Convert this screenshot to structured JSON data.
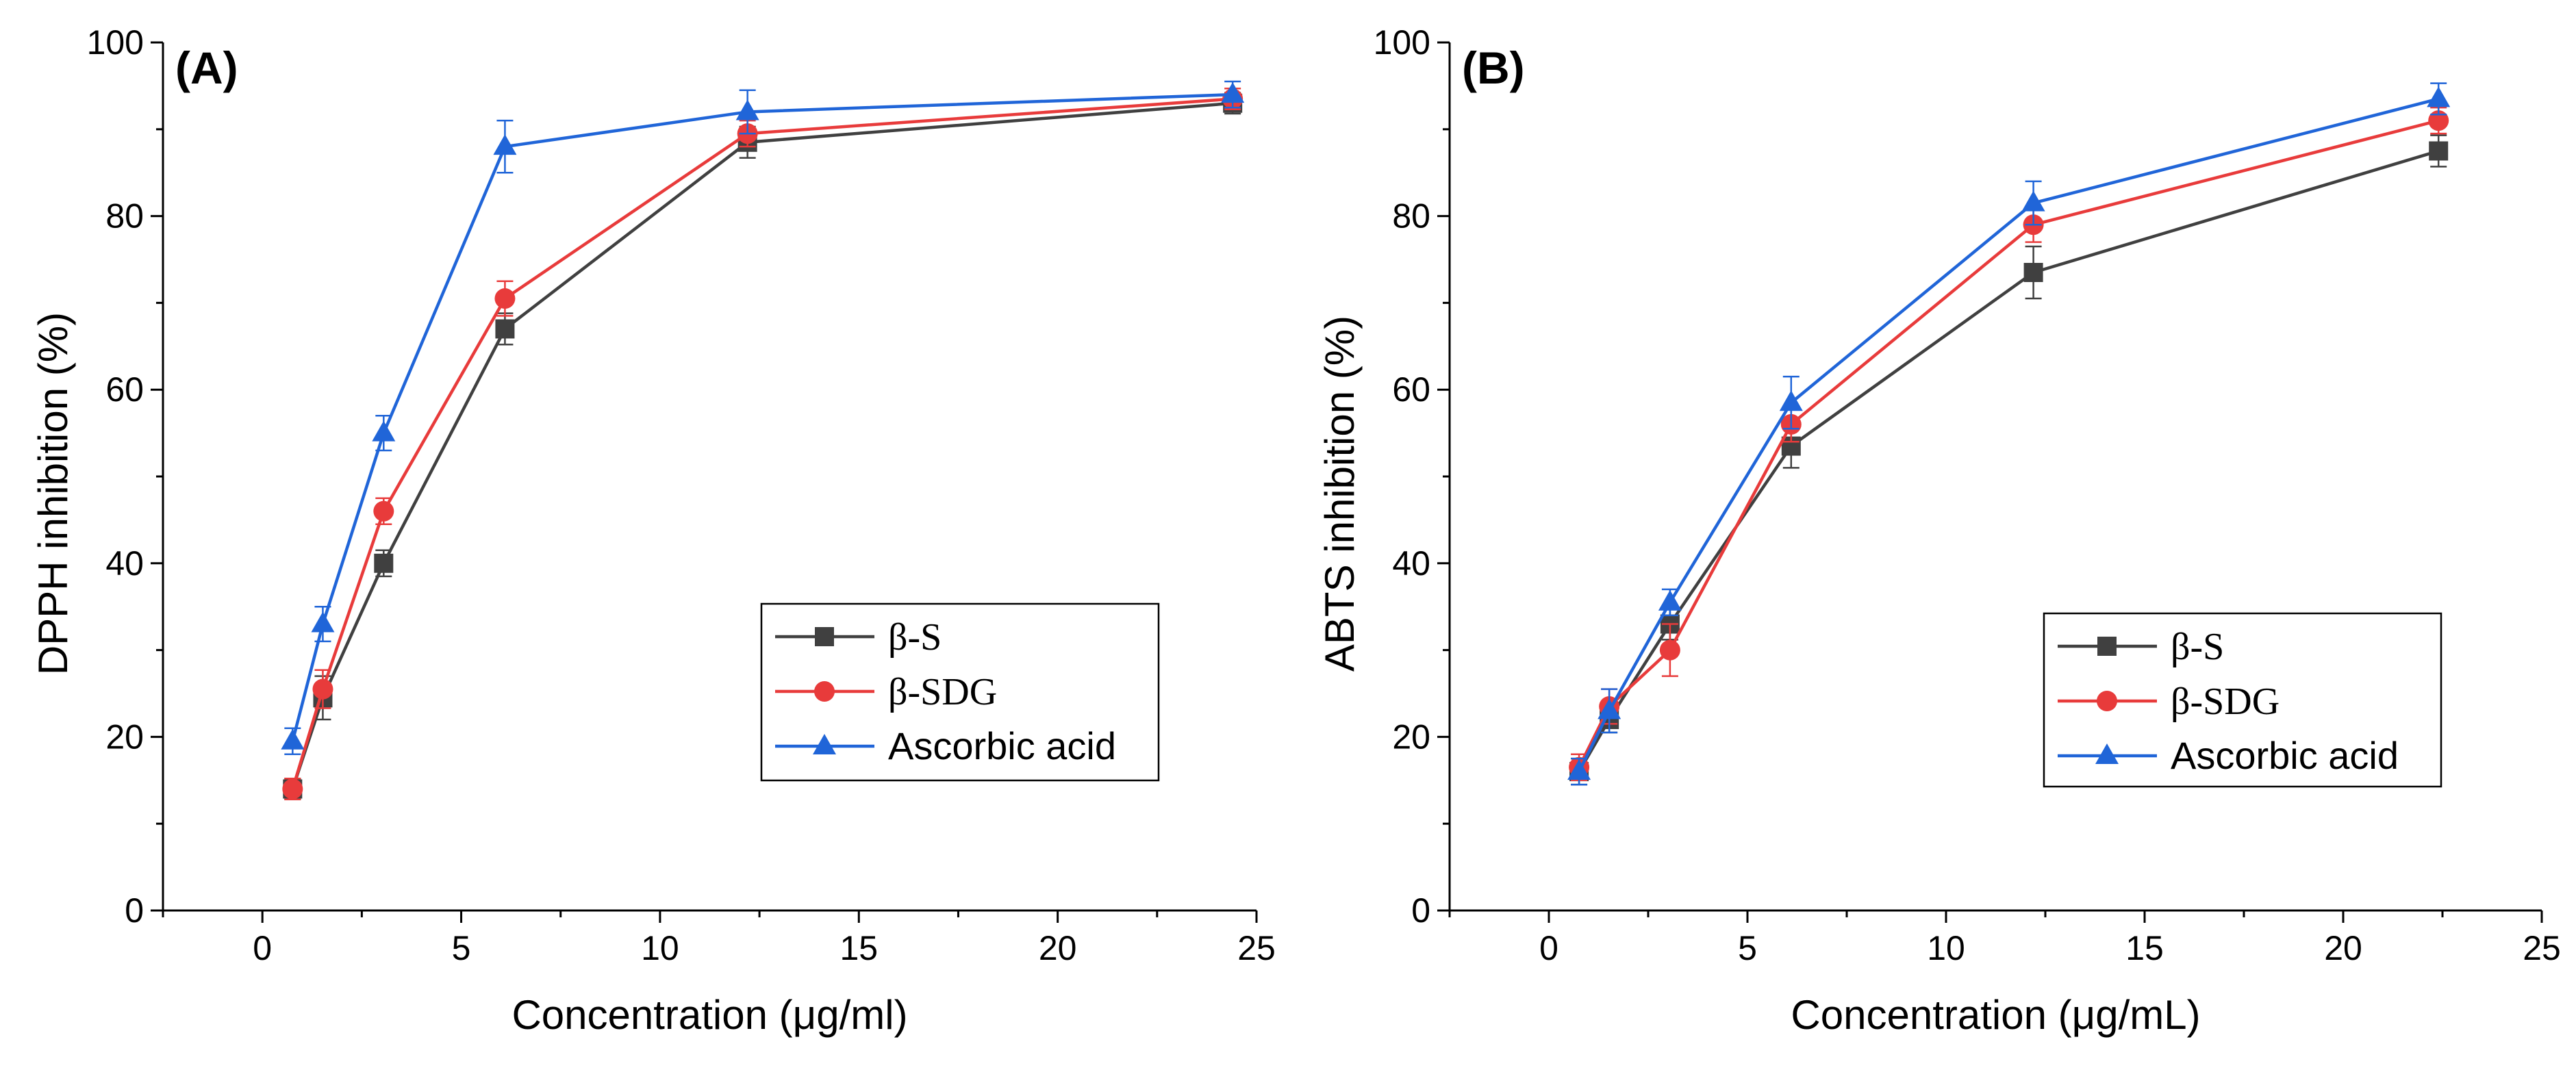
{
  "chart_data": [
    {
      "type": "line",
      "panel_label": "(A)",
      "xlabel": "Concentration (μg/ml)",
      "ylabel": "DPPH inhibition (%)",
      "xlim": [
        -2.5,
        25
      ],
      "ylim": [
        0,
        100
      ],
      "xticks": [
        0,
        5,
        10,
        15,
        20,
        25
      ],
      "yticks": [
        0,
        20,
        40,
        60,
        80,
        100
      ],
      "legend_position": "bottom-right",
      "series": [
        {
          "name": "β-S",
          "color": "#404040",
          "marker": "square",
          "x": [
            0.76,
            1.52,
            3.05,
            6.1,
            12.2,
            24.4
          ],
          "y": [
            14,
            24.5,
            40,
            67,
            88.5,
            93
          ],
          "err": [
            1.2,
            2.5,
            1.5,
            1.8,
            1.8,
            1.2
          ]
        },
        {
          "name": "β-SDG",
          "color": "#e83b3b",
          "marker": "circle",
          "x": [
            0.76,
            1.52,
            3.05,
            6.1,
            12.2,
            24.4
          ],
          "y": [
            14,
            25.5,
            46,
            70.5,
            89.5,
            93.5
          ],
          "err": [
            1.2,
            2.2,
            1.5,
            2.0,
            1.5,
            1.2
          ]
        },
        {
          "name": "Ascorbic acid",
          "color": "#2065d8",
          "marker": "triangle",
          "x": [
            0.76,
            1.52,
            3.05,
            6.1,
            12.2,
            24.4
          ],
          "y": [
            19.5,
            33,
            55,
            88,
            92,
            94
          ],
          "err": [
            1.5,
            2.0,
            2.0,
            3.0,
            2.5,
            1.5
          ]
        }
      ]
    },
    {
      "type": "line",
      "panel_label": "(B)",
      "xlabel": "Concentration (μg/mL)",
      "ylabel": "ABTS inhibition (%)",
      "xlim": [
        -2.5,
        25
      ],
      "ylim": [
        0,
        100
      ],
      "xticks": [
        0,
        5,
        10,
        15,
        20,
        25
      ],
      "yticks": [
        0,
        20,
        40,
        60,
        80,
        100
      ],
      "legend_position": "bottom-right",
      "series": [
        {
          "name": "β-S",
          "color": "#404040",
          "marker": "square",
          "x": [
            0.76,
            1.52,
            3.05,
            6.1,
            12.2,
            22.4
          ],
          "y": [
            16,
            22,
            33,
            53.5,
            73.5,
            87.5
          ],
          "err": [
            1.5,
            1.5,
            1.8,
            2.5,
            3.0,
            1.8
          ]
        },
        {
          "name": "β-SDG",
          "color": "#e83b3b",
          "marker": "circle",
          "x": [
            0.76,
            1.52,
            3.05,
            6.1,
            12.2,
            22.4
          ],
          "y": [
            16.5,
            23.5,
            30,
            56,
            79,
            91
          ],
          "err": [
            1.5,
            2.0,
            3.0,
            2.0,
            2.0,
            1.5
          ]
        },
        {
          "name": "Ascorbic acid",
          "color": "#2065d8",
          "marker": "triangle",
          "x": [
            0.76,
            1.52,
            3.05,
            6.1,
            12.2,
            22.4
          ],
          "y": [
            16,
            23,
            35.5,
            58.5,
            81.5,
            93.5
          ],
          "err": [
            1.5,
            2.5,
            1.5,
            3.0,
            2.5,
            1.8
          ]
        }
      ]
    }
  ]
}
